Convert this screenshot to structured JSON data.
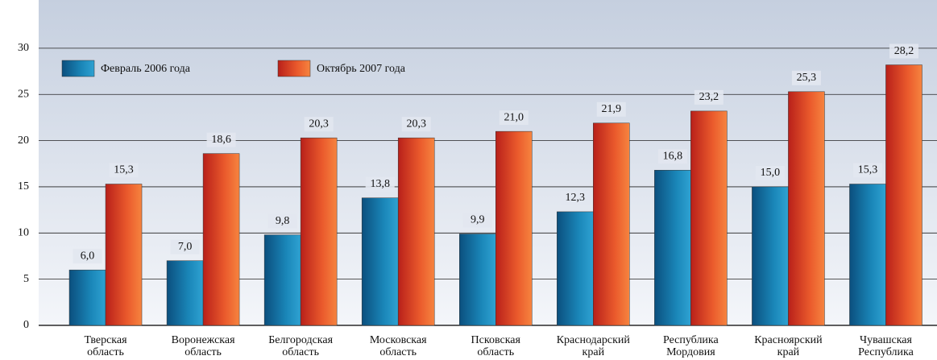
{
  "chart_data": {
    "type": "bar",
    "categories": [
      "Тверская область",
      "Воронежская область",
      "Белгородская область",
      "Московская область",
      "Псковская область",
      "Краснодарский край",
      "Республика Мордовия",
      "Красноярский край",
      "Чувашская Республика"
    ],
    "series": [
      {
        "name": "Февраль 2006 года",
        "color": "#1a7aa8",
        "values": [
          6.0,
          7.0,
          9.8,
          13.8,
          9.9,
          12.3,
          16.8,
          15.0,
          15.3
        ],
        "value_labels": [
          "6,0",
          "7,0",
          "9,8",
          "13,8",
          "9,9",
          "12,3",
          "16,8",
          "15,0",
          "15,3"
        ]
      },
      {
        "name": "Октябрь 2007 года",
        "color": "#e8502a",
        "values": [
          15.3,
          18.6,
          20.3,
          20.3,
          21.0,
          21.9,
          23.2,
          25.3,
          28.2
        ],
        "value_labels": [
          "15,3",
          "18,6",
          "20,3",
          "20,3",
          "21,0",
          "21,9",
          "23,2",
          "25,3",
          "28,2"
        ]
      }
    ],
    "ylim": [
      0,
      32
    ],
    "yticks": [
      0,
      5,
      10,
      15,
      20,
      25,
      30
    ],
    "grid": true,
    "legend": "top-left"
  }
}
